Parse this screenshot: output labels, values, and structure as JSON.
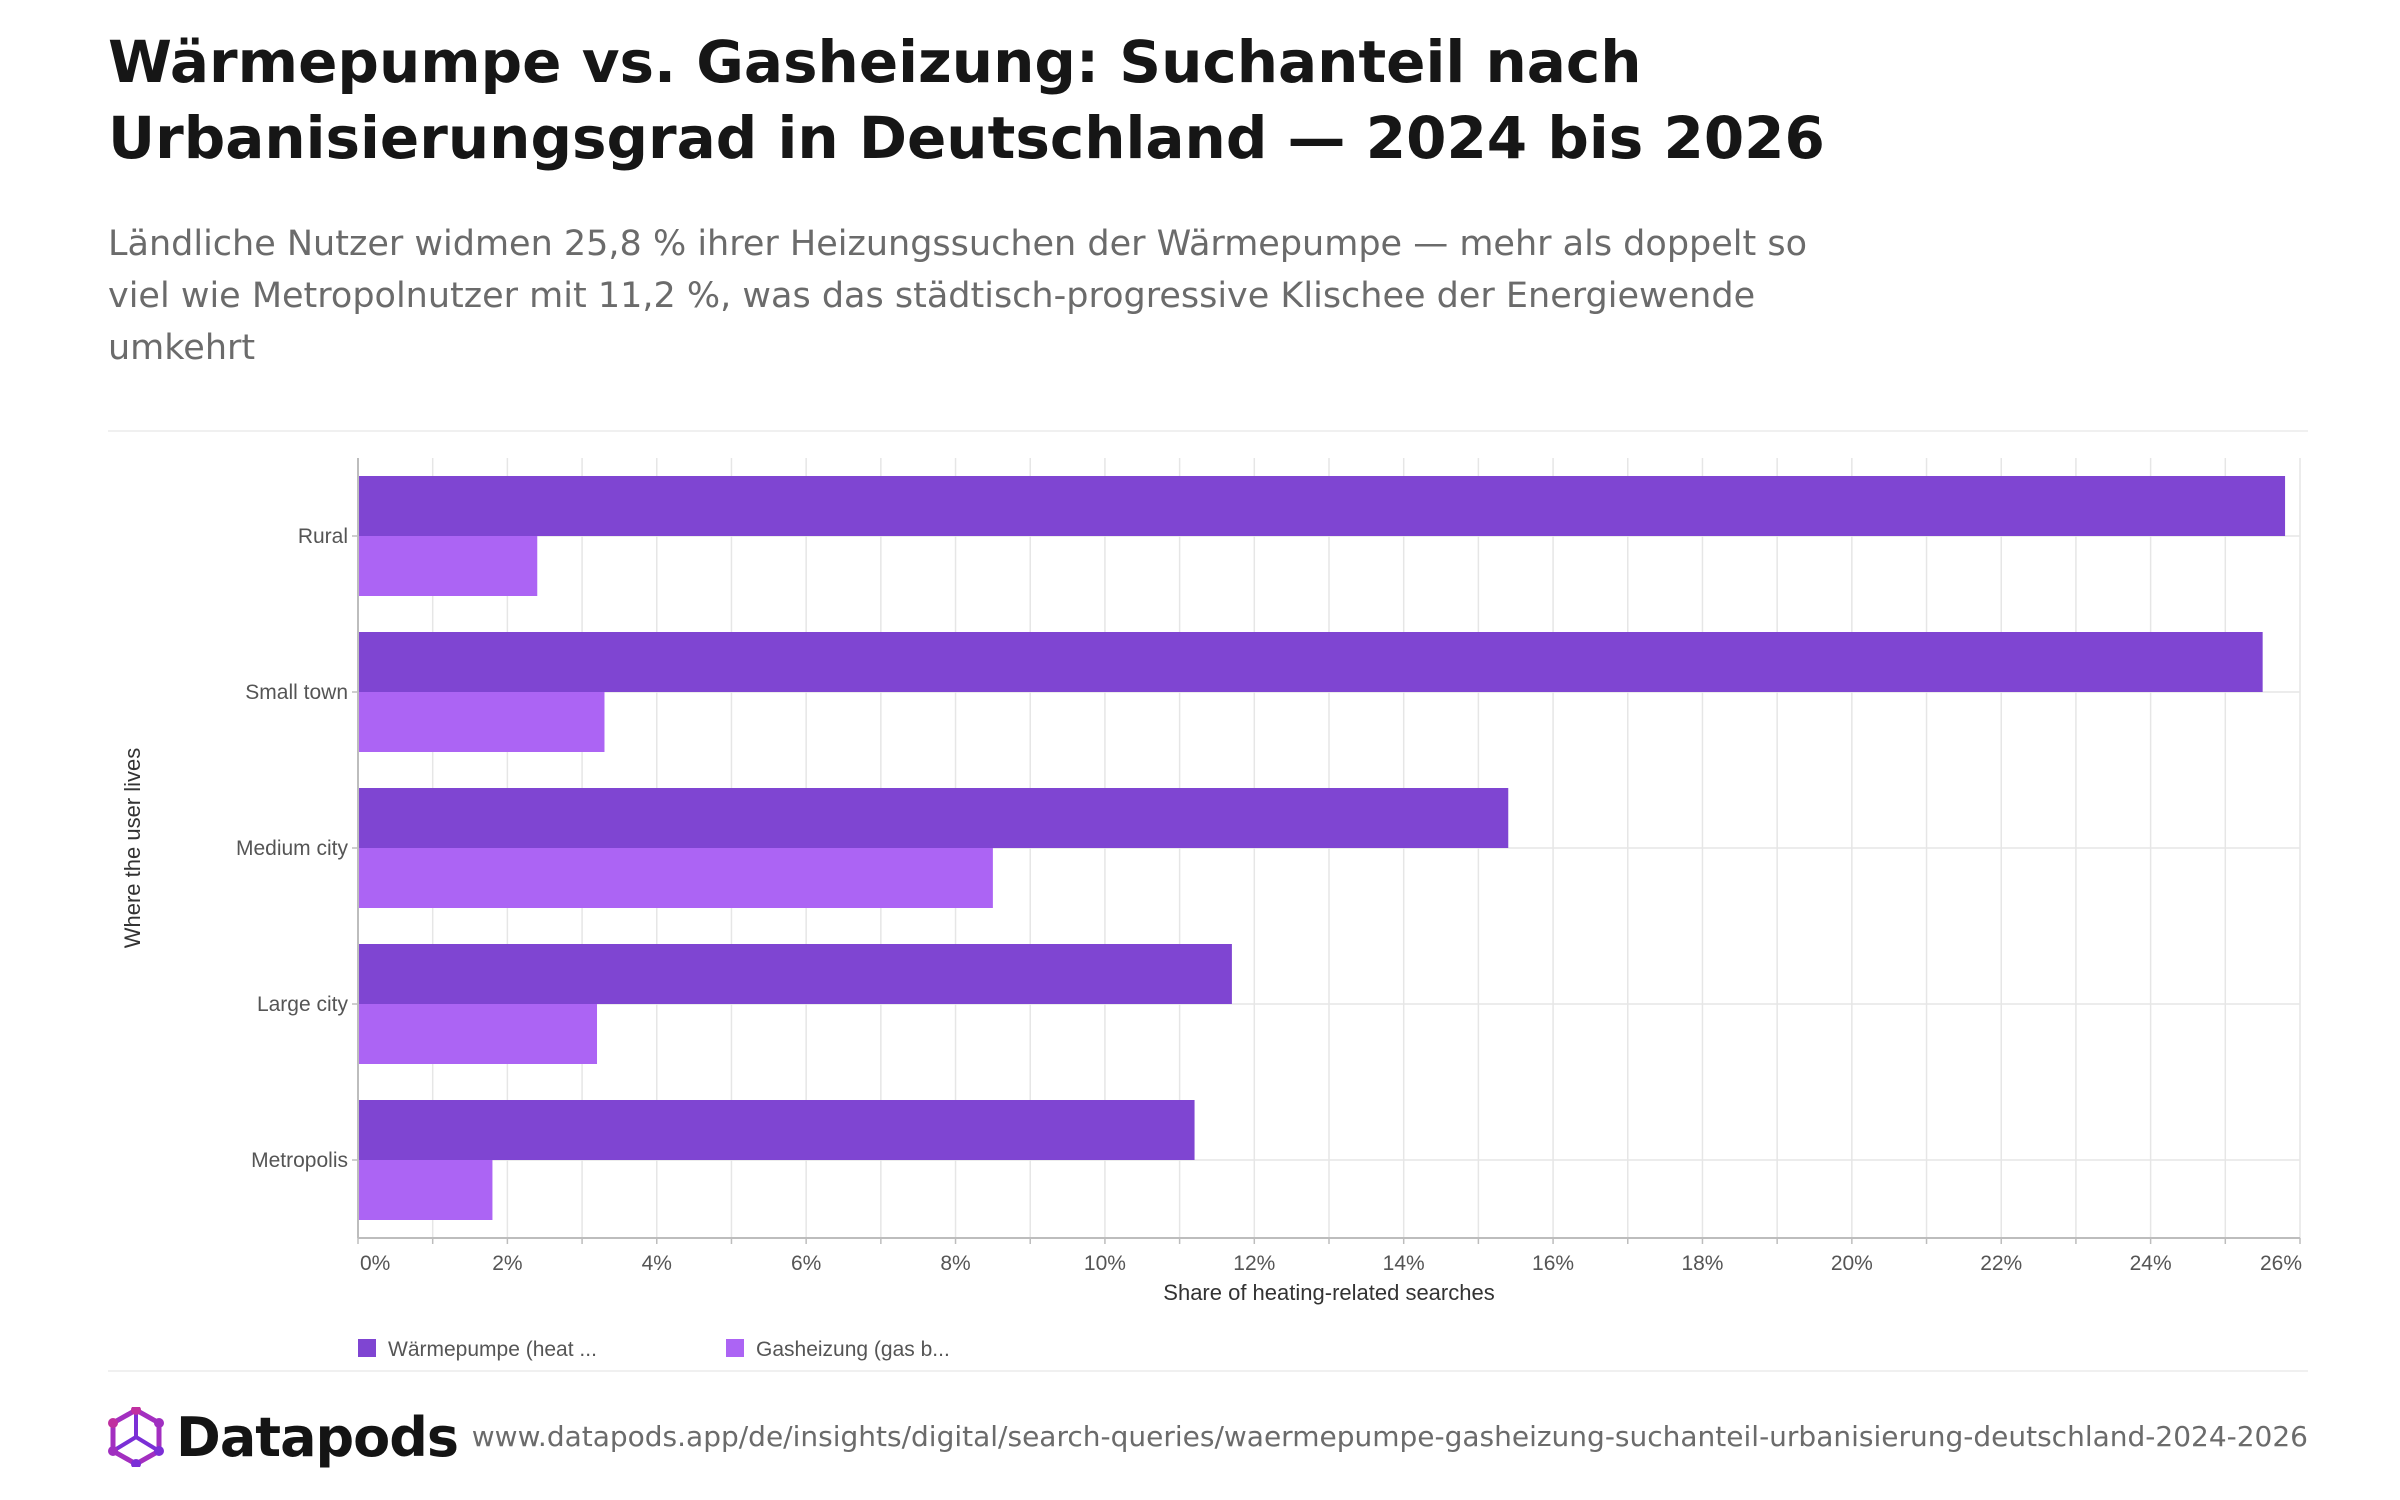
{
  "header": {
    "title": "Wärmepumpe vs. Gasheizung: Suchanteil nach Urbanisierungsgrad in Deutschland — 2024 bis 2026",
    "subtitle": "Ländliche Nutzer widmen 25,8 % ihrer Heizungssuchen der Wärmepumpe — mehr als doppelt so viel wie Metropolnutzer mit 11,2 %, was das städtisch-progressive Klischee der Energiewende umkehrt"
  },
  "chart_data": {
    "type": "bar",
    "orientation": "horizontal",
    "categories": [
      "Rural",
      "Small town",
      "Medium city",
      "Large city",
      "Metropolis"
    ],
    "series": [
      {
        "name": "Wärmepumpe (heat ...",
        "color": "#7f45d2",
        "values": [
          25.8,
          25.5,
          15.4,
          11.7,
          11.2
        ]
      },
      {
        "name": "Gasheizung (gas b...",
        "color": "#ac64f4",
        "values": [
          2.4,
          3.3,
          8.5,
          3.2,
          1.8
        ]
      }
    ],
    "xlabel": "Share of heating-related searches",
    "ylabel": "Where the user lives",
    "xlim": [
      0,
      26
    ],
    "xticks": [
      0,
      2,
      4,
      6,
      8,
      10,
      12,
      14,
      16,
      18,
      20,
      22,
      24,
      26
    ],
    "tick_suffix": "%",
    "grid": true,
    "legend_position": "bottom-left"
  },
  "footer": {
    "brand": "Datapods",
    "url": "www.datapods.app/de/insights/digital/search-queries/waermepumpe-gasheizung-suchanteil-urbanisierung-deutschland-2024-2026",
    "logo_colors": [
      "#b02fb0",
      "#7b2fd6"
    ]
  }
}
